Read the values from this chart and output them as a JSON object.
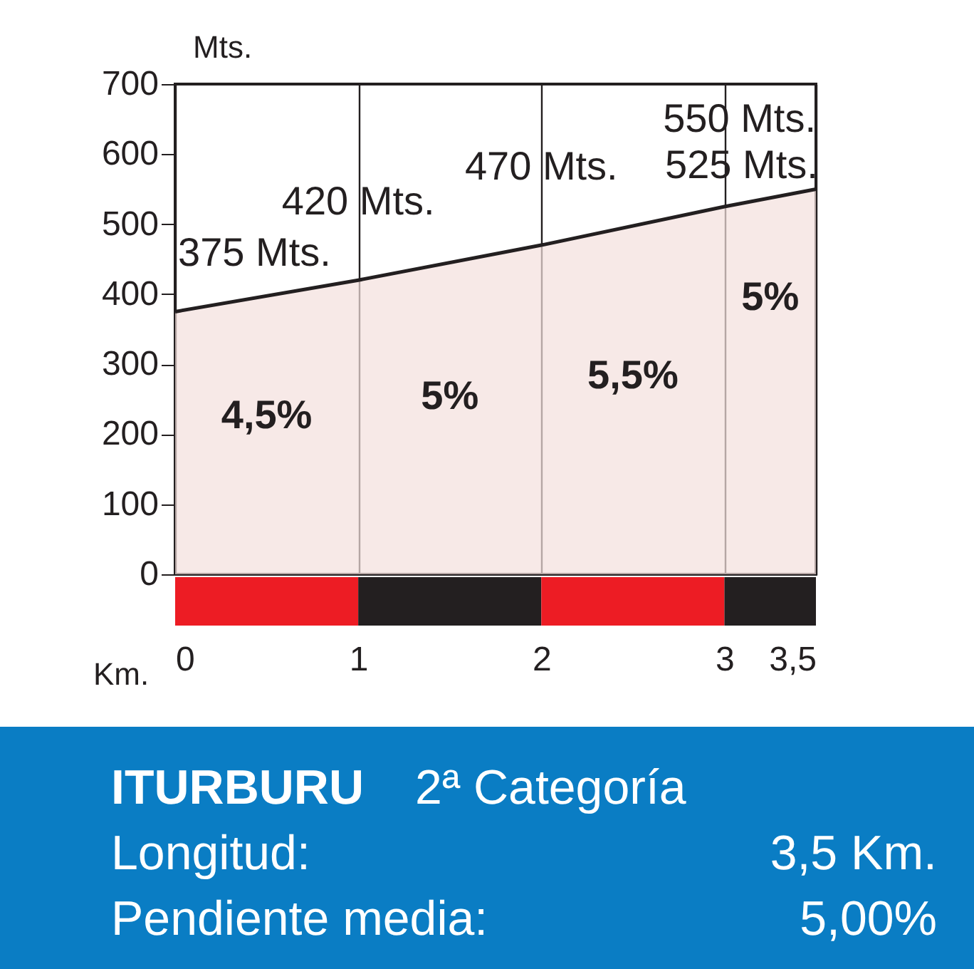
{
  "chart_data": {
    "type": "area",
    "title": "ITURBURU",
    "subtitle": "2ª Categoría",
    "xlabel": "Km.",
    "ylabel": "Mts.",
    "x": [
      0,
      1,
      2,
      3,
      3.5
    ],
    "series": [
      {
        "color": "#f4dfdd",
        "values": [
          375,
          420,
          470,
          525,
          550
        ]
      }
    ],
    "xlim": [
      0,
      3.5
    ],
    "xticks": [
      0,
      1,
      2,
      3,
      {
        "value": 3.5,
        "label": "3,5"
      }
    ],
    "ylim": [
      0,
      700
    ],
    "yticks": [
      0,
      100,
      200,
      300,
      400,
      500,
      600,
      700
    ],
    "grid": "x",
    "annotations": [
      {
        "text": "375 Mts.",
        "x": 0,
        "y": 375
      },
      {
        "text": "420 Mts.",
        "x": 1,
        "y": 420
      },
      {
        "text": "470 Mts.",
        "x": 2,
        "y": 470
      },
      {
        "text": "525 Mts.",
        "x": 3,
        "y": 525
      },
      {
        "text": "550 Mts.",
        "x": 3.5,
        "y": 550
      },
      "4,5%",
      "5%",
      "5,5%",
      "5%",
      "Longitud:",
      "3,5 Km.",
      "Pendiente media:",
      "5,00%"
    ]
  }
}
